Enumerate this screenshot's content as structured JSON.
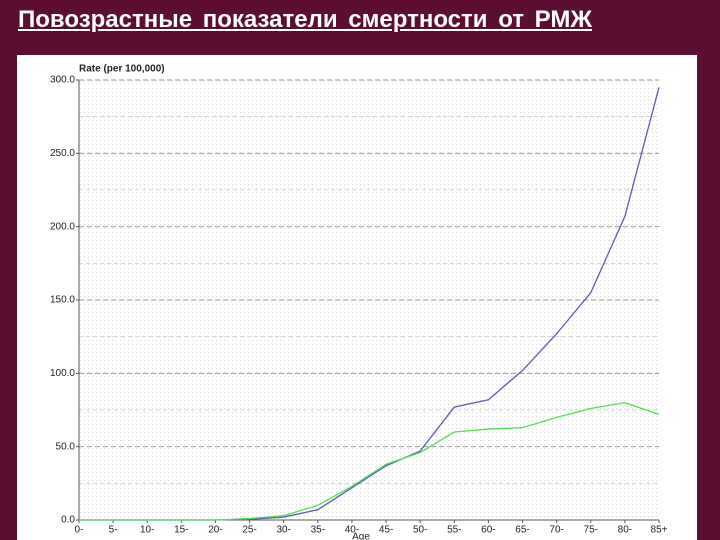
{
  "slide_title": "Повозрастные показатели смертности от РМЖ",
  "chart_data": {
    "type": "line",
    "y_axis_label": "Rate (per 100,000)",
    "x_axis_label": "Age",
    "categories": [
      "0-",
      "5-",
      "10-",
      "15-",
      "20-",
      "25-",
      "30-",
      "35-",
      "40-",
      "45-",
      "50-",
      "55-",
      "60-",
      "65-",
      "70-",
      "75-",
      "80-",
      "85+"
    ],
    "series": [
      {
        "color": "#5b5bb0",
        "values": [
          0,
          0,
          0,
          0,
          0,
          0.5,
          2,
          7,
          22,
          37,
          47,
          77,
          82,
          102,
          127,
          155,
          207,
          295
        ]
      },
      {
        "color": "#55dd55",
        "values": [
          0,
          0,
          0,
          0,
          0,
          1,
          3,
          10,
          23,
          38,
          46,
          60,
          62,
          63,
          70,
          76,
          80,
          72
        ]
      }
    ],
    "ylim": [
      0,
      300
    ],
    "yticks": [
      {
        "value": 0,
        "label": "0.0"
      },
      {
        "value": 50,
        "label": "50.0"
      },
      {
        "value": 100,
        "label": "100.0"
      },
      {
        "value": 150,
        "label": "150.0"
      },
      {
        "value": 200,
        "label": "200.0"
      },
      {
        "value": 250,
        "label": "250.0"
      },
      {
        "value": 300,
        "label": "300.0"
      }
    ],
    "minor_yticks": [
      25,
      75,
      125,
      175,
      225,
      275
    ],
    "grid": true
  }
}
